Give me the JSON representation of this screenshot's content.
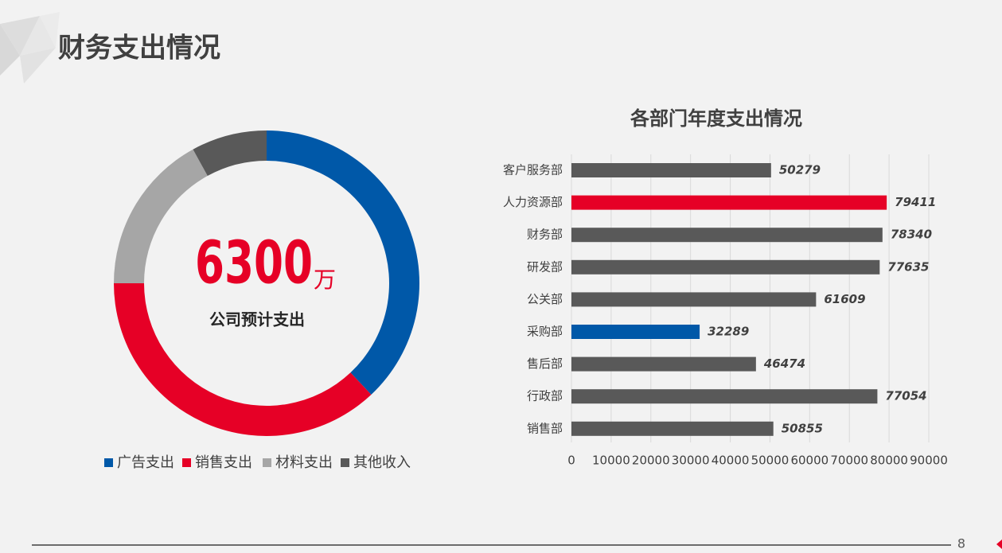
{
  "header": {
    "title": "财务支出情况"
  },
  "page_number": "8",
  "chart_data": [
    {
      "type": "donut",
      "center_value": 6300,
      "center_unit": "万",
      "center_label": "公司预计支出",
      "categories": [
        "广告支出",
        "销售支出",
        "材料支出",
        "其他收入"
      ],
      "values": [
        38,
        37,
        17,
        8
      ],
      "colors": [
        "#0058a8",
        "#e60026",
        "#a6a6a6",
        "#595959"
      ]
    },
    {
      "type": "hbar",
      "title": "各部门年度支出情况",
      "categories": [
        "客户服务部",
        "人力资源部",
        "财务部",
        "研发部",
        "公关部",
        "采购部",
        "售后部",
        "行政部",
        "销售部"
      ],
      "values": [
        50279,
        79411,
        78340,
        77635,
        61609,
        32289,
        46474,
        77054,
        50855
      ],
      "colors": [
        "#595959",
        "#e60026",
        "#595959",
        "#595959",
        "#595959",
        "#0058a8",
        "#595959",
        "#595959",
        "#595959"
      ],
      "xlim": [
        0,
        90000
      ],
      "xticks": [
        0,
        10000,
        20000,
        30000,
        40000,
        50000,
        60000,
        70000,
        80000,
        90000
      ],
      "grid": true
    }
  ]
}
